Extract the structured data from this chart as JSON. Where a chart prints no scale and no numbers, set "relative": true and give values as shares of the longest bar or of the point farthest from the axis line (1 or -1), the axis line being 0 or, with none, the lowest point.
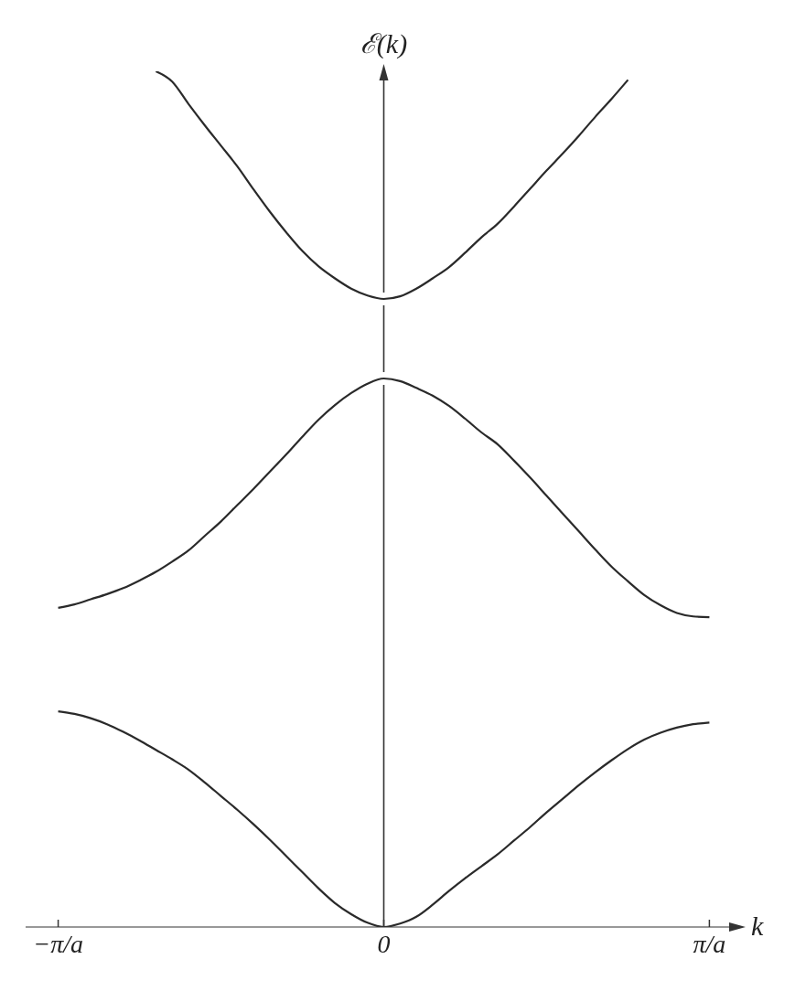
{
  "chart_data": {
    "type": "line",
    "relative": true,
    "xlabel": "k",
    "ylabel": "ℰ(k)",
    "grid": false,
    "marker": "none",
    "line_style": "solid",
    "categories": [
      null,
      null,
      "−π/a",
      null,
      null,
      null,
      null,
      null,
      null,
      null,
      null,
      null,
      null,
      null,
      null,
      null,
      null,
      null,
      null,
      null,
      null,
      null,
      "0",
      null,
      null,
      null,
      null,
      null,
      null,
      null,
      null,
      null,
      null,
      null,
      null,
      null,
      null,
      null,
      null,
      null,
      null,
      null,
      "π/a",
      null,
      null
    ],
    "series": [
      {
        "color": "#2a2a2a",
        "values": [
          null,
          null,
          0.252,
          0.249,
          0.244,
          0.237,
          0.228,
          0.218,
          0.207,
          0.196,
          0.184,
          0.169,
          0.153,
          0.137,
          0.12,
          0.102,
          0.083,
          0.064,
          0.045,
          0.028,
          0.015,
          0.005,
          0,
          0.004,
          0.012,
          0.026,
          0.042,
          0.057,
          0.071,
          0.085,
          0.101,
          0.117,
          0.134,
          0.15,
          0.166,
          0.181,
          0.195,
          0.208,
          0.219,
          0.227,
          0.233,
          0.237,
          0.239,
          null,
          null
        ]
      },
      {
        "color": "#2a2a2a",
        "values": [
          null,
          null,
          0.373,
          0.377,
          0.383,
          0.389,
          0.396,
          0.405,
          0.415,
          0.427,
          0.44,
          0.457,
          0.474,
          0.493,
          0.512,
          0.532,
          0.552,
          0.573,
          0.593,
          0.61,
          0.624,
          0.635,
          0.641,
          0.638,
          0.63,
          0.621,
          0.609,
          0.594,
          0.578,
          0.564,
          0.545,
          0.525,
          0.504,
          0.483,
          0.462,
          0.441,
          0.421,
          0.404,
          0.388,
          0.376,
          0.367,
          0.363,
          0.362,
          null,
          null
        ]
      },
      {
        "color": "#2a2a2a",
        "values": [
          null,
          null,
          null,
          null,
          null,
          null,
          null,
          null,
          1,
          0.988,
          0.962,
          0.937,
          0.913,
          0.889,
          0.862,
          0.836,
          0.812,
          0.79,
          0.772,
          0.758,
          0.746,
          0.738,
          0.734,
          0.737,
          0.746,
          0.758,
          0.771,
          0.788,
          0.806,
          0.822,
          0.842,
          0.863,
          0.884,
          0.904,
          0.925,
          0.947,
          0.968,
          0.99,
          null,
          null,
          null,
          null,
          null,
          null,
          null
        ]
      }
    ]
  }
}
